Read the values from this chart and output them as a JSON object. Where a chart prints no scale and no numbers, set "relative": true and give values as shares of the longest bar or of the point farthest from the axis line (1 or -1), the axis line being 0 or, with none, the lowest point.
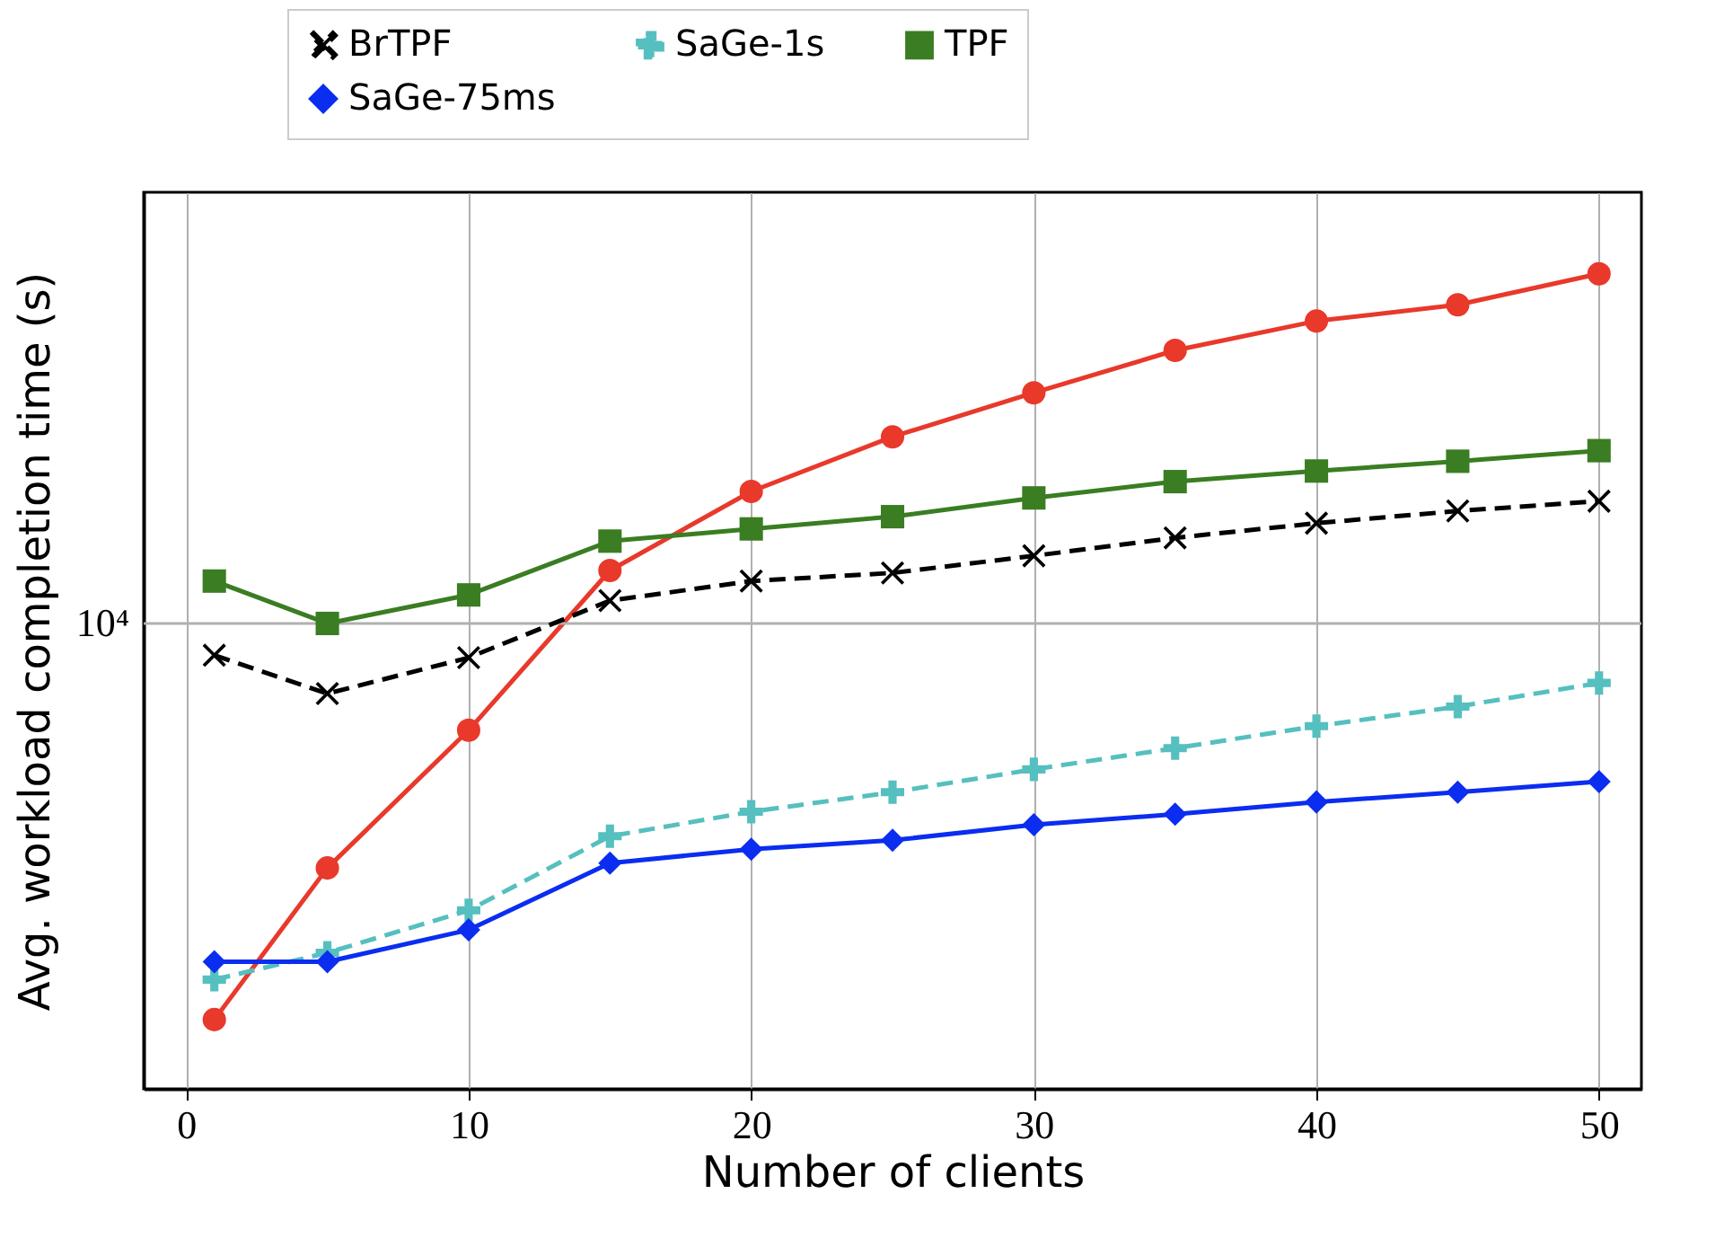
{
  "chart_data": {
    "type": "line",
    "xlabel": "Number of clients",
    "ylabel": "Avg. workload completion time (s)",
    "x": [
      1,
      5,
      10,
      15,
      20,
      25,
      30,
      35,
      40,
      45,
      50
    ],
    "relative": true,
    "series": [
      {
        "color": "#e8392b",
        "marker": "circle",
        "line_style": "solid",
        "values": [
          0.085,
          0.271,
          0.44,
          0.636,
          0.733,
          0.8,
          0.854,
          0.906,
          0.942,
          0.962,
          1
        ]
      },
      {
        "name": "BrTPF",
        "color": "#000000",
        "marker": "x",
        "line_style": "dashed",
        "values": [
          0.532,
          0.485,
          0.529,
          0.599,
          0.623,
          0.633,
          0.654,
          0.676,
          0.694,
          0.709,
          0.721
        ]
      },
      {
        "name": "SaGe-1s",
        "color": "#56bfbf",
        "marker": "cross",
        "line_style": "dashed",
        "values": [
          0.134,
          0.167,
          0.219,
          0.31,
          0.34,
          0.364,
          0.392,
          0.418,
          0.445,
          0.469,
          0.498
        ]
      },
      {
        "name": "TPF",
        "color": "#3a7d22",
        "marker": "square",
        "line_style": "solid",
        "values": [
          0.623,
          0.571,
          0.606,
          0.672,
          0.687,
          0.702,
          0.725,
          0.745,
          0.758,
          0.77,
          0.783
        ]
      },
      {
        "name": "SaGe-75ms",
        "color": "#0a2df0",
        "marker": "diamond",
        "line_style": "solid",
        "values": [
          0.156,
          0.156,
          0.195,
          0.277,
          0.294,
          0.305,
          0.324,
          0.337,
          0.352,
          0.364,
          0.377
        ]
      }
    ],
    "ref_lines": [
      {
        "axis": "y",
        "value": 0.571,
        "label": "10⁴",
        "color": "#b0b0b0"
      }
    ],
    "xlim": [
      -1.5,
      51.5
    ],
    "xticks": [
      0,
      10,
      20,
      30,
      40,
      50
    ],
    "grid": "x",
    "legend": "top"
  }
}
